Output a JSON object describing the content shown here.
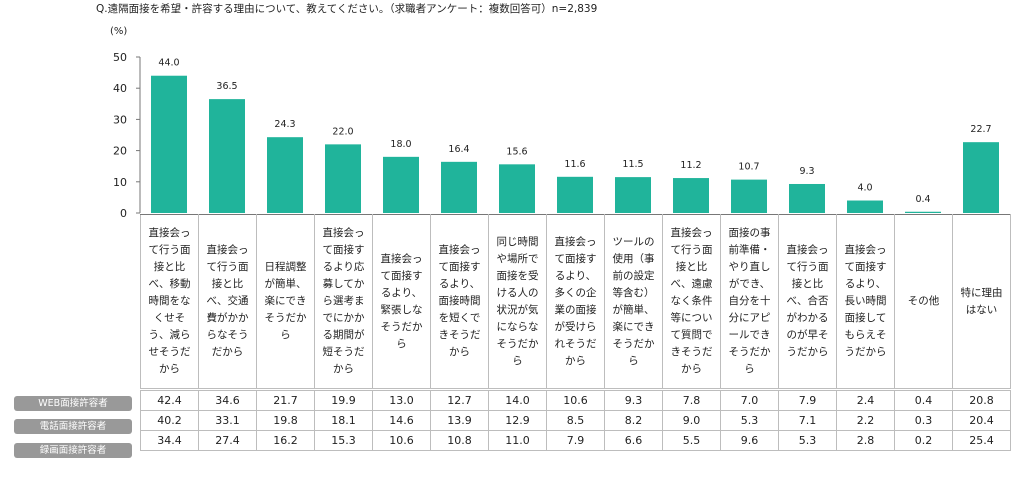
{
  "title": "Q.遠隔面接を希望・許容する理由について、教えてください。（求職者アンケート：複数回答可）n=2,839",
  "unit": "(%)",
  "colors": {
    "bar": "#20b49b",
    "axis": "#777777",
    "row_label_bg": "#999999"
  },
  "chart_data": {
    "type": "bar",
    "categories": [
      "直接会って行う面接と比べ、移動時間をなくせそう、減らせそうだから",
      "直接会って行う面接と比べ、交通費がかからなそうだから",
      "日程調整が簡単、楽にできそうだから",
      "直接会って面接するより応募してから選考までにかかる期間が短そうだから",
      "直接会って面接するより、緊張しなそうだから",
      "直接会って面接するより、面接時間を短くできそうだから",
      "同じ時間や場所で面接を受ける人の状況が気にならなそうだから",
      "直接会って面接するより、多くの企業の面接が受けられそうだから",
      "ツールの使用（事前の設定等含む）が簡単、楽にできそうだから",
      "直接会って行う面接と比べ、遠慮なく条件等について質問できそうだから",
      "面接の事前準備・やり直しができ、自分を十分にアピールできそうだから",
      "直接会って行う面接と比べ、合否がわかるのが早そうだから",
      "直接会って面接するより、長い時間面接してもらえそうだから",
      "その他",
      "特に理由はない"
    ],
    "values": [
      44.0,
      36.5,
      24.3,
      22.0,
      18.0,
      16.4,
      15.6,
      11.6,
      11.5,
      11.2,
      10.7,
      9.3,
      4.0,
      0.4,
      22.7
    ],
    "value_labels": [
      "44.0",
      "36.5",
      "24.3",
      "22.0",
      "18.0",
      "16.4",
      "15.6",
      "11.6",
      "11.5",
      "11.2",
      "10.7",
      "9.3",
      "4.0",
      "0.4",
      "22.7"
    ],
    "ylim": [
      0,
      50
    ],
    "yticks": [
      "0",
      "10",
      "20",
      "30",
      "40",
      "50"
    ],
    "ytick_values": [
      0,
      10,
      20,
      30,
      40,
      50
    ],
    "grid": false,
    "table": [
      {
        "name": "WEB面接許容者",
        "values": [
          "42.4",
          "34.6",
          "21.7",
          "19.9",
          "13.0",
          "12.7",
          "14.0",
          "10.6",
          "9.3",
          "7.8",
          "7.0",
          "7.9",
          "2.4",
          "0.4",
          "20.8"
        ]
      },
      {
        "name": "電話面接許容者",
        "values": [
          "40.2",
          "33.1",
          "19.8",
          "18.1",
          "14.6",
          "13.9",
          "12.9",
          "8.5",
          "8.2",
          "9.0",
          "5.3",
          "7.1",
          "2.2",
          "0.3",
          "20.4"
        ]
      },
      {
        "name": "録画面接許容者",
        "values": [
          "34.4",
          "27.4",
          "16.2",
          "15.3",
          "10.6",
          "10.8",
          "11.0",
          "7.9",
          "6.6",
          "5.5",
          "9.6",
          "5.3",
          "2.8",
          "0.2",
          "25.4"
        ]
      }
    ]
  }
}
